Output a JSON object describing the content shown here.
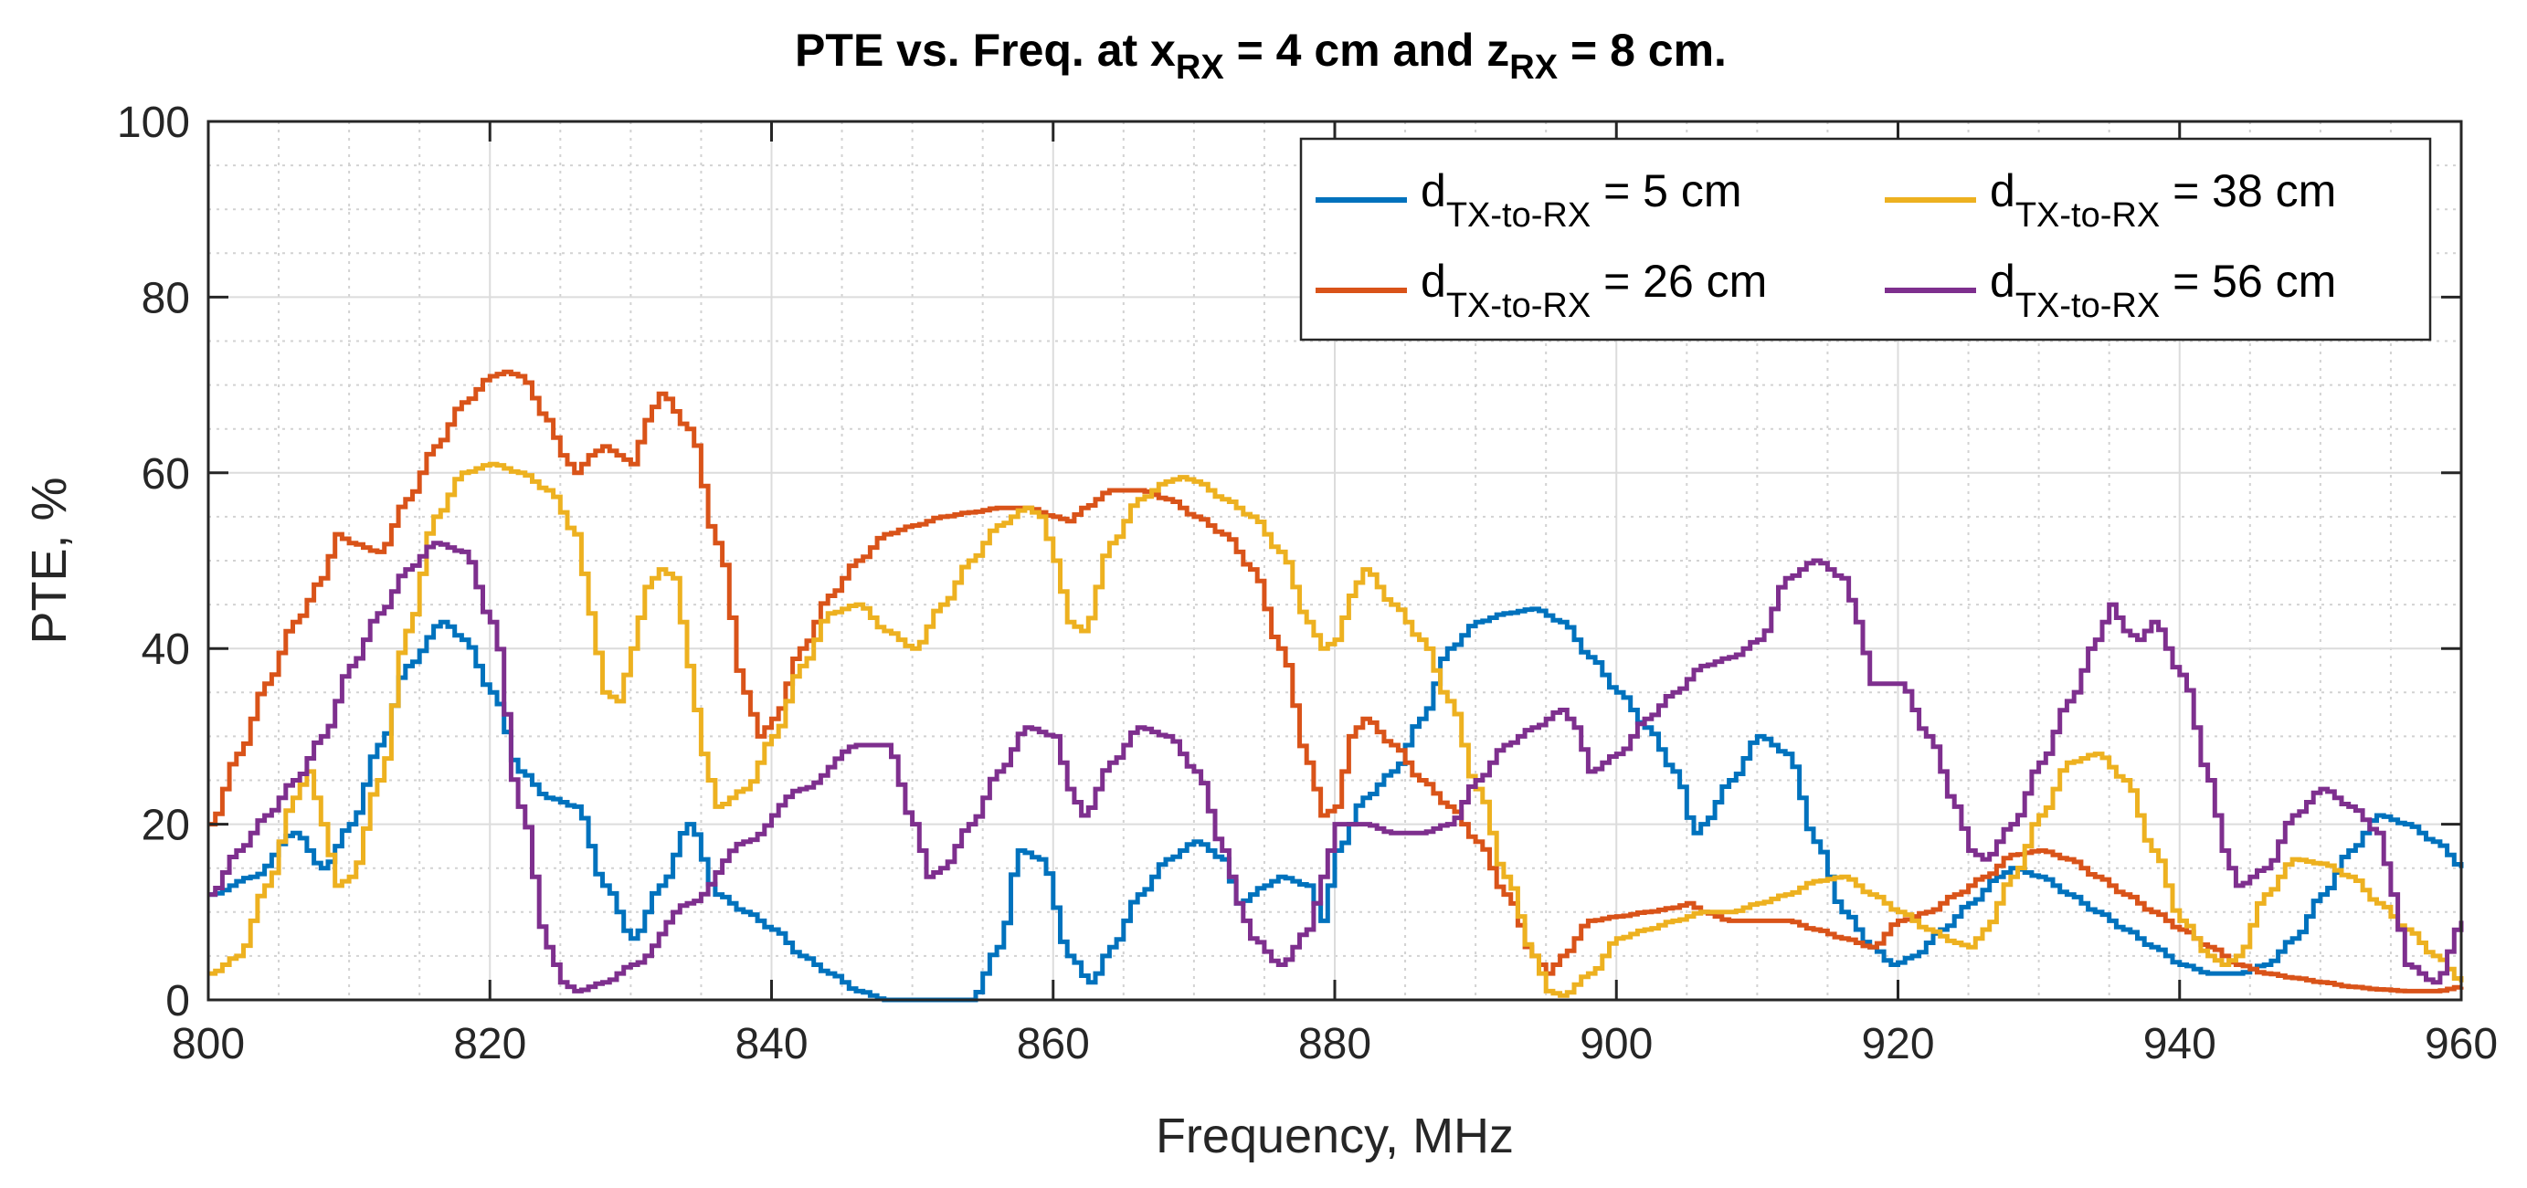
{
  "chart_data": {
    "type": "line",
    "title": {
      "prefix": "PTE vs. Freq. at x",
      "sub1": "RX",
      "middle": " = 4 cm and z",
      "sub2": "RX",
      "suffix": " = 8 cm."
    },
    "xlabel": "Frequency, MHz",
    "ylabel": "PTE, %",
    "xlim": [
      800,
      960
    ],
    "ylim": [
      0,
      100
    ],
    "xticks": [
      "800",
      "820",
      "840",
      "860",
      "880",
      "900",
      "920",
      "940",
      "960"
    ],
    "yticks": [
      "0",
      "20",
      "40",
      "60",
      "80",
      "100"
    ],
    "grid": true,
    "minor_grid": true,
    "legend_position": "top-right",
    "legend_subscript": "TX-to-RX",
    "series": [
      {
        "name": "d TX-to-RX = 5 cm",
        "label_main": "d",
        "label_rest": " = 5 cm",
        "color": "#0072BD",
        "x": [
          800,
          803,
          806,
          808,
          810,
          812,
          814,
          816.5,
          818,
          820,
          822,
          824,
          826,
          828,
          830,
          832,
          834,
          836,
          838,
          840,
          842,
          844,
          846,
          848,
          850,
          852,
          854,
          856,
          857.5,
          859,
          861,
          862.5,
          864,
          866,
          868,
          870,
          872,
          873,
          875,
          876,
          878,
          879,
          880,
          882,
          884,
          886,
          888,
          890,
          892,
          894,
          896,
          898,
          900,
          902,
          904,
          905.5,
          906,
          908,
          910,
          912,
          914,
          916,
          918,
          919.5,
          921,
          923,
          925,
          927,
          928,
          930,
          932,
          934,
          936,
          938,
          940,
          942,
          944,
          946,
          948,
          950,
          952,
          954,
          956,
          958,
          960
        ],
        "y": [
          12,
          14,
          19,
          15,
          20,
          29,
          38,
          43,
          41,
          35,
          26,
          23,
          22,
          13,
          7,
          13,
          20,
          12,
          10,
          8,
          5,
          3,
          1,
          0,
          0,
          0,
          0,
          6,
          17,
          16,
          5,
          2,
          6,
          12,
          16,
          18,
          16,
          11,
          13,
          14,
          13,
          9,
          17,
          23,
          26,
          32,
          40,
          43,
          44,
          44.5,
          43,
          39,
          35,
          31,
          26,
          19,
          20,
          25,
          30,
          28,
          18,
          10,
          6,
          4,
          5,
          8,
          11,
          14,
          15,
          14,
          12,
          10,
          8,
          6,
          4,
          3,
          3,
          4,
          7,
          12,
          17,
          21,
          20,
          18,
          15
        ]
      },
      {
        "name": "d TX-to-RX = 26 cm",
        "label_main": "d",
        "label_rest": " = 26 cm",
        "color": "#D95319",
        "x": [
          800,
          802,
          804,
          806,
          808,
          809,
          810,
          812,
          814,
          816,
          818,
          820,
          821,
          822,
          824,
          825,
          826,
          827,
          828,
          829,
          830,
          831,
          832,
          834,
          836,
          838,
          839,
          840,
          842,
          844,
          846,
          848,
          850,
          852,
          854,
          856,
          858,
          860,
          861,
          862,
          864,
          866,
          868,
          870,
          872,
          874,
          876,
          878,
          879,
          880,
          881,
          882,
          884,
          886,
          888,
          890,
          892,
          894,
          895,
          896,
          898,
          900,
          902,
          904,
          905,
          906,
          908,
          910,
          912,
          914,
          916,
          918,
          920,
          922,
          924,
          926,
          928,
          930,
          932,
          934,
          936,
          938,
          940,
          942,
          944,
          946,
          948,
          950,
          952,
          954,
          956,
          958,
          960
        ],
        "y": [
          20,
          28,
          36,
          43,
          48,
          53,
          52,
          51,
          57,
          63,
          68,
          71,
          71.5,
          71,
          66,
          62,
          60,
          62,
          63,
          62,
          61,
          66,
          69,
          65,
          52,
          35,
          30,
          32,
          40,
          46,
          50,
          53,
          54,
          55,
          55.5,
          56,
          56,
          55,
          54.5,
          56,
          58,
          58,
          57,
          55,
          53,
          49,
          40,
          27,
          21,
          22,
          30,
          32,
          29,
          25,
          22,
          18,
          12,
          5,
          3,
          5,
          9,
          9.5,
          10,
          10.5,
          11,
          10,
          9,
          9,
          9,
          8,
          7,
          6,
          9,
          10,
          12,
          14,
          16.5,
          17,
          16,
          14,
          12,
          10,
          8,
          6,
          4,
          3,
          2.5,
          2,
          1.5,
          1.2,
          1,
          1,
          1.5
        ]
      },
      {
        "name": "d TX-to-RX = 38 cm",
        "label_main": "d",
        "label_rest": " = 38 cm",
        "color": "#EDB120",
        "x": [
          800,
          802,
          804,
          806,
          807,
          808,
          809,
          810,
          812,
          814,
          816,
          818,
          820,
          822,
          824,
          826,
          827,
          828,
          829,
          830,
          831,
          832,
          833,
          834,
          835,
          836,
          838,
          840,
          842,
          844,
          846,
          848,
          850,
          852,
          854,
          856,
          858,
          859,
          860,
          861,
          862,
          864,
          866,
          868,
          869,
          870,
          872,
          874,
          876,
          878,
          879,
          880,
          881,
          882,
          884,
          886,
          888,
          890,
          892,
          894,
          895,
          896,
          898,
          900,
          902,
          904,
          906,
          908,
          910,
          912,
          914,
          916,
          918,
          920,
          922,
          924,
          925,
          926,
          928,
          930,
          932,
          934,
          936,
          938,
          940,
          942,
          943,
          944,
          946,
          948,
          950,
          952,
          954,
          956,
          958,
          960
        ],
        "y": [
          3,
          5,
          13,
          23,
          26,
          20,
          13,
          14,
          25,
          42,
          55,
          60,
          61,
          60,
          58,
          53,
          44,
          35,
          34,
          40,
          47,
          49,
          48,
          38,
          28,
          22,
          24,
          30,
          38,
          44,
          45,
          42,
          40,
          45,
          50,
          54,
          56,
          55,
          50,
          43,
          42,
          52,
          57,
          59,
          59.5,
          59,
          57,
          55,
          51,
          43,
          40,
          41,
          46,
          49,
          45,
          41,
          34,
          24,
          14,
          5,
          1,
          0.5,
          3,
          7,
          8,
          9,
          10,
          10,
          11,
          12,
          13.5,
          14,
          12,
          10,
          8,
          6.5,
          6,
          8,
          14,
          21,
          27,
          28,
          25,
          17,
          9,
          5,
          4,
          5,
          12,
          16,
          15.5,
          14,
          11,
          8,
          5,
          2
        ]
      },
      {
        "name": "d TX-to-RX = 56 cm",
        "label_main": "d",
        "label_rest": " = 56 cm",
        "color": "#7E2F8E",
        "x": [
          800,
          802,
          804,
          806,
          808,
          810,
          812,
          814,
          816,
          818,
          820,
          822,
          824,
          825,
          826,
          828,
          830,
          834,
          838,
          842,
          846,
          848,
          850,
          851,
          852,
          854,
          856,
          858,
          860,
          861,
          862,
          864,
          866,
          868,
          870,
          872,
          873,
          874,
          876,
          878,
          879,
          880,
          882,
          884,
          886,
          888,
          890,
          892,
          894,
          896,
          897,
          898,
          900,
          902,
          904,
          906,
          908,
          910,
          912,
          914,
          916,
          917,
          918,
          920,
          922,
          924,
          925,
          926,
          928,
          930,
          932,
          934,
          935,
          936,
          937,
          938,
          940,
          942,
          943,
          944,
          946,
          948,
          950,
          952,
          954,
          955,
          956,
          958,
          960
        ],
        "y": [
          12,
          17,
          21,
          25,
          30,
          38,
          44,
          49,
          52,
          51,
          43,
          22,
          6,
          2,
          1,
          2,
          4,
          11,
          18,
          24,
          29,
          29,
          20,
          14,
          15,
          20,
          26,
          31,
          30,
          24,
          21,
          27,
          31,
          30,
          26,
          17,
          11,
          7,
          4,
          8,
          14,
          20,
          20,
          19,
          19,
          20,
          25,
          29,
          31,
          33,
          31,
          26,
          28,
          32,
          35,
          38,
          39,
          41,
          48,
          50,
          48,
          43,
          36,
          36,
          30,
          22,
          17,
          16,
          20,
          27,
          34,
          41,
          45,
          42,
          41,
          43,
          37,
          25,
          17,
          13,
          15,
          21,
          24,
          22,
          19,
          12,
          4,
          2,
          9
        ]
      }
    ]
  }
}
